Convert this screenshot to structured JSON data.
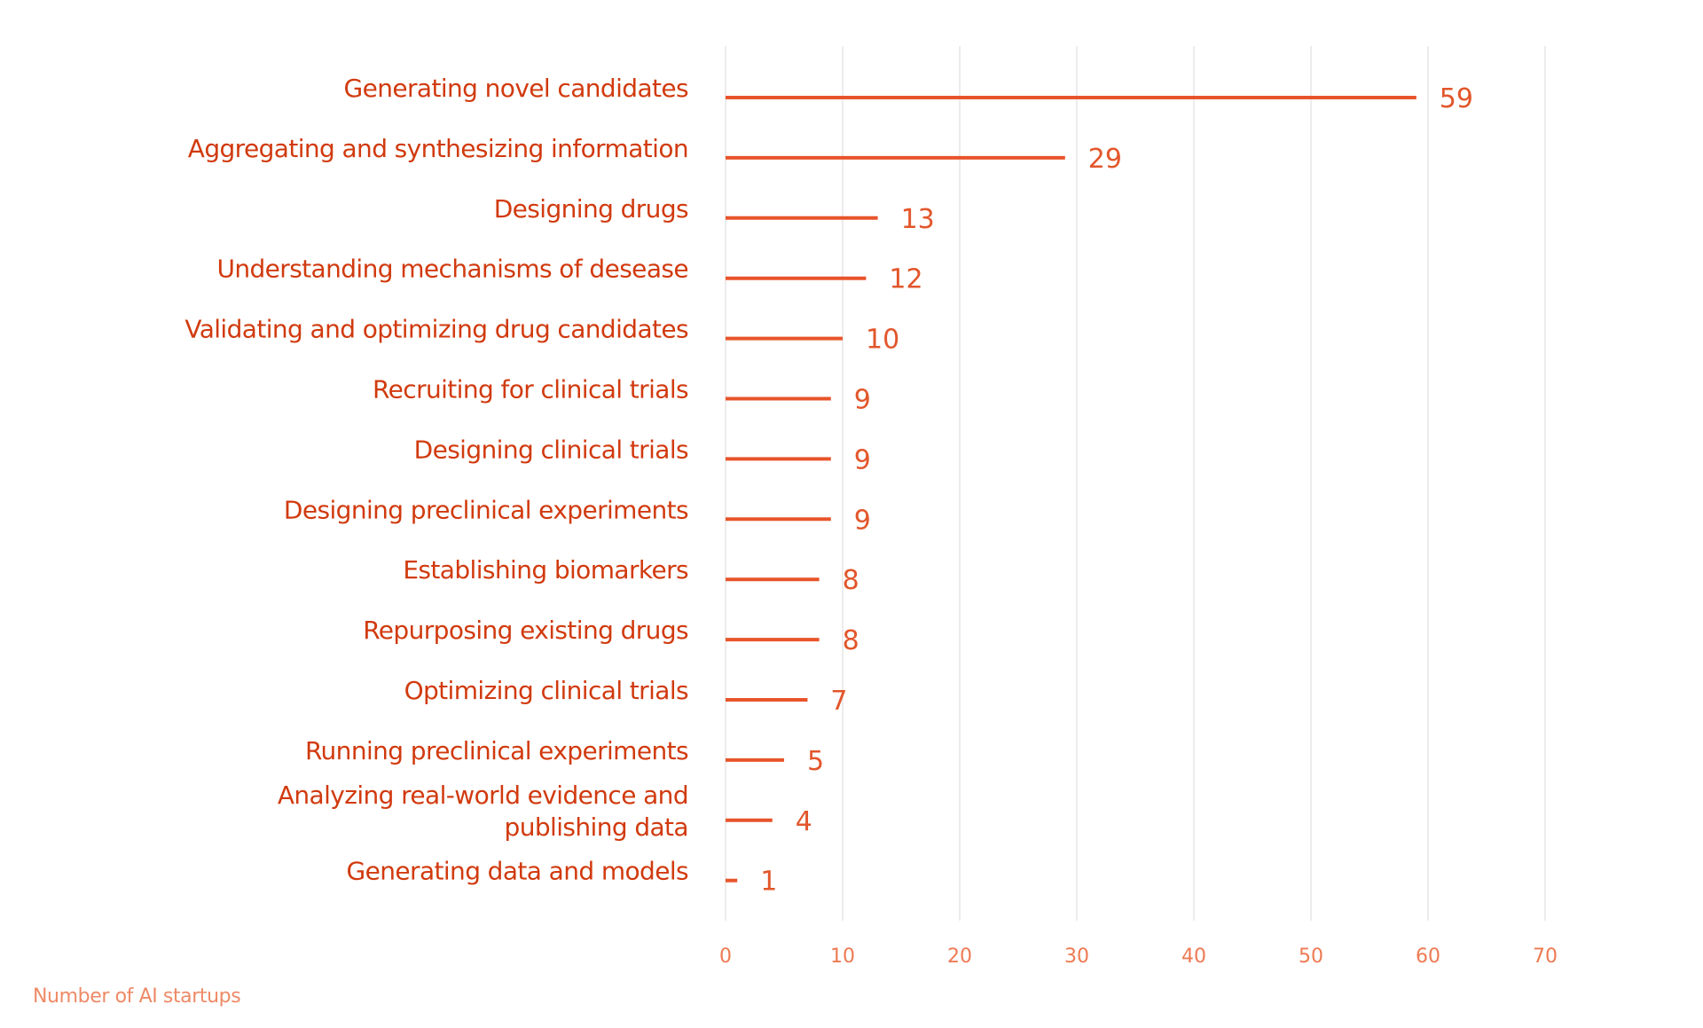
{
  "chart_data": {
    "type": "bar",
    "orientation": "horizontal",
    "categories": [
      [
        "Generating novel candidates"
      ],
      [
        "Aggregating and synthesizing information"
      ],
      [
        "Designing drugs"
      ],
      [
        "Understanding mechanisms of desease"
      ],
      [
        "Validating and optimizing drug candidates"
      ],
      [
        "Recruiting for clinical trials"
      ],
      [
        "Designing clinical trials"
      ],
      [
        "Designing preclinical experiments"
      ],
      [
        "Establishing biomarkers"
      ],
      [
        "Repurposing existing drugs"
      ],
      [
        "Optimizing clinical trials"
      ],
      [
        "Running preclinical experiments"
      ],
      [
        "Analyzing real-world evidence and",
        "publishing data"
      ],
      [
        "Generating data and models"
      ]
    ],
    "values": [
      59,
      29,
      13,
      12,
      10,
      9,
      9,
      9,
      8,
      8,
      7,
      5,
      4,
      1
    ],
    "value_labels": [
      "59",
      "29",
      "13",
      "12",
      "10",
      "9",
      "9",
      "9",
      "8",
      "8",
      "7",
      "5",
      "4",
      "1"
    ],
    "x_ticks": [
      0,
      10,
      20,
      30,
      40,
      50,
      60,
      70
    ],
    "x_tick_labels": [
      "0",
      "10",
      "20",
      "30",
      "40",
      "50",
      "60",
      "70"
    ],
    "xlim": [
      0,
      70
    ],
    "xlabel": "Number of AI startups",
    "title": "",
    "grid": "vertical",
    "legend": "none",
    "colors": {
      "bar": "#e8542a",
      "category_text": "#d13a0e",
      "value_text": "#e2562b",
      "tick_text": "#ee7a52",
      "xlabel_text": "#ee8a66",
      "grid": "#e6e6e6"
    }
  }
}
